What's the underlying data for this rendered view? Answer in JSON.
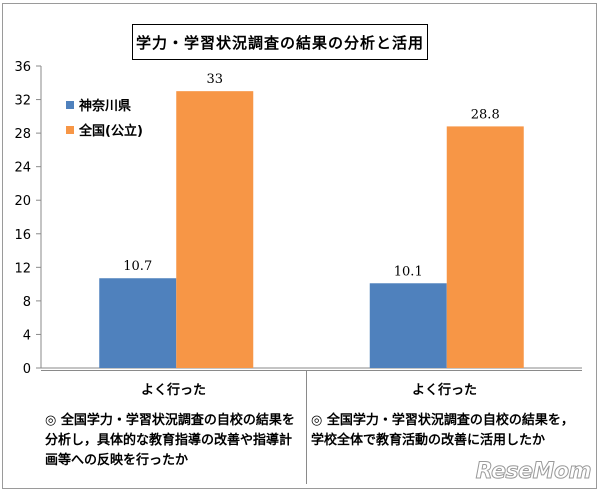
{
  "chart_data": {
    "type": "bar",
    "title": "学力・学習状況調査の結果の分析と活用",
    "categories": [
      {
        "label": "よく行った",
        "description": "◎ 全国学力・学習状況調査の自校の結果を分析し，具体的な教育指導の改善や指導計画等への反映を行ったか"
      },
      {
        "label": "よく行った",
        "description": "◎ 全国学力・学習状況調査の自校の結果を，学校全体で教育活動の改善に活用したか"
      }
    ],
    "series": [
      {
        "name": "神奈川県",
        "color": "#4f81bd",
        "values": [
          10.7,
          10.1
        ],
        "labels": [
          "10.7",
          "10.1"
        ]
      },
      {
        "name": "全国(公立)",
        "color": "#f79646",
        "values": [
          33,
          28.8
        ],
        "labels": [
          "33",
          "28.8"
        ]
      }
    ],
    "y_ticks": [
      "0",
      "4",
      "8",
      "12",
      "16",
      "20",
      "24",
      "28",
      "32",
      "36"
    ],
    "ylim": [
      0,
      36
    ],
    "grid": false,
    "legend_position": "top-left"
  },
  "watermark": {
    "text": "ReseMom"
  }
}
